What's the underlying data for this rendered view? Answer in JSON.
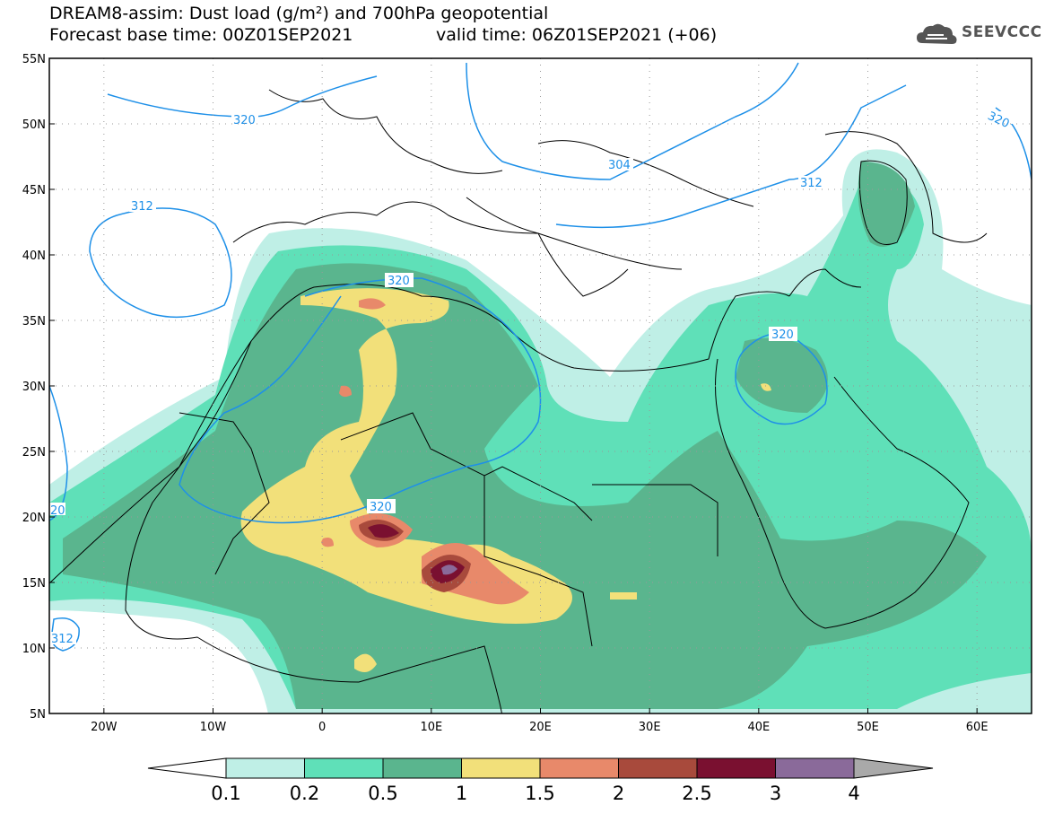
{
  "header": {
    "line1": "DREAM8-assim: Dust load (g/m²) and 700hPa geopotential",
    "line2_left": "Forecast base time: 00Z01SEP2021",
    "line2_right": "valid time: 06Z01SEP2021 (+06)"
  },
  "logo": {
    "text": "SEEVCCC",
    "icon": "cloud-logo-icon"
  },
  "map": {
    "lat_labels": [
      "55N",
      "50N",
      "45N",
      "40N",
      "35N",
      "30N",
      "25N",
      "20N",
      "15N",
      "10N",
      "5N"
    ],
    "lon_labels": [
      "20W",
      "10W",
      "0",
      "10E",
      "20E",
      "30E",
      "40E",
      "50E",
      "60E"
    ],
    "contour_labels": [
      "320",
      "312",
      "304",
      "312",
      "320",
      "320",
      "320",
      "320",
      "312",
      "20"
    ],
    "colors": {
      "c1": "#bfefe6",
      "c2": "#5fe0b8",
      "c3": "#5ab58e",
      "c4": "#f2e07a",
      "c5": "#e8896a",
      "c6": "#a84a3c",
      "c7": "#7a1030",
      "c8": "#8a6a9a",
      "contour": "#1e90e8"
    }
  },
  "colorbar": {
    "labels": [
      "0.1",
      "0.2",
      "0.5",
      "1",
      "1.5",
      "2",
      "2.5",
      "3",
      "4"
    ],
    "colors": [
      "#bfefe6",
      "#5fe0b8",
      "#5ab58e",
      "#f2e07a",
      "#e8896a",
      "#a84a3c",
      "#7a1030",
      "#8a6a9a"
    ]
  }
}
